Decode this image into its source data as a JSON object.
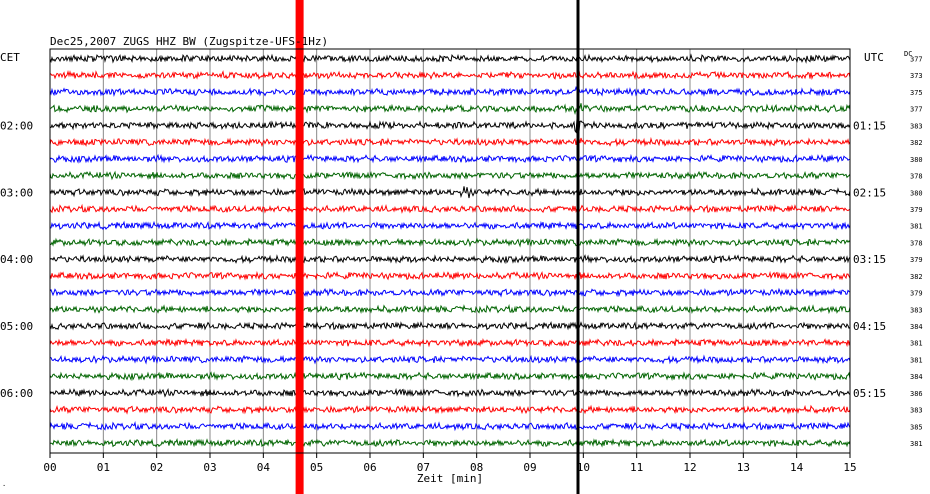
{
  "header": {
    "title": "Dec25,2007   ZUGS HHZ BW (Zugspitze-UFS-1Hz)",
    "left_zone": "CET",
    "right_zone": "UTC",
    "dc_label": "DC"
  },
  "chart_data": {
    "type": "line",
    "title": "Dec25,2007   ZUGS HHZ BW (Zugspitze-UFS-1Hz)",
    "xlabel": "Zeit [min]",
    "ylabel": "",
    "xlim": [
      0,
      15
    ],
    "x_ticks": [
      "00",
      "01",
      "02",
      "03",
      "04",
      "05",
      "06",
      "07",
      "08",
      "09",
      "10",
      "11",
      "12",
      "13",
      "14",
      "15"
    ],
    "left_hour_labels": [
      {
        "row": 4,
        "text": "02:00"
      },
      {
        "row": 8,
        "text": "03:00"
      },
      {
        "row": 12,
        "text": "04:00"
      },
      {
        "row": 16,
        "text": "05:00"
      },
      {
        "row": 20,
        "text": "06:00"
      }
    ],
    "right_hour_labels": [
      {
        "row": 4,
        "text": "01:15"
      },
      {
        "row": 8,
        "text": "02:15"
      },
      {
        "row": 12,
        "text": "03:15"
      },
      {
        "row": 16,
        "text": "04:15"
      },
      {
        "row": 20,
        "text": "05:15"
      }
    ],
    "trace_colors": [
      "#000000",
      "#ff0000",
      "#0000ff",
      "#006400"
    ],
    "dc_values": [
      "377",
      "373",
      "375",
      "377",
      "383",
      "382",
      "380",
      "378",
      "380",
      "379",
      "381",
      "378",
      "379",
      "382",
      "379",
      "383",
      "384",
      "381",
      "381",
      "384",
      "386",
      "383",
      "385",
      "381"
    ],
    "grid": true,
    "events": [
      {
        "minute": 4.68,
        "color": "#ff0000",
        "kind": "marker"
      },
      {
        "minute": 9.9,
        "color": "#000000",
        "kind": "marker"
      },
      {
        "minute": 7.8,
        "row": 8,
        "kind": "small-event"
      }
    ]
  }
}
